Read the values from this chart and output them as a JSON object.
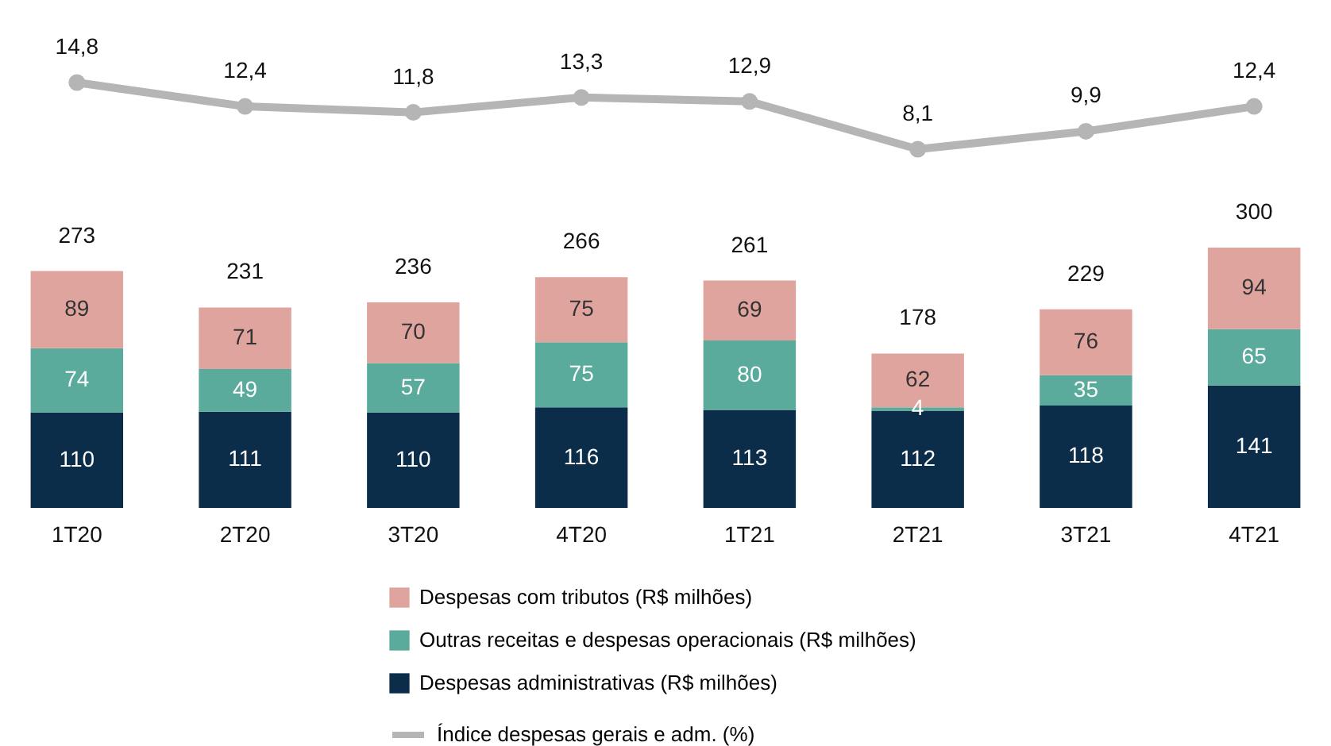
{
  "chart_data": [
    {
      "type": "line",
      "categories": [
        null,
        null,
        null,
        null,
        null,
        null,
        null,
        null
      ],
      "series": [
        {
          "name": "Índice despesas gerais e adm. (%)",
          "color": "#b5b5b5",
          "values": [
            14.8,
            12.4,
            11.8,
            13.3,
            12.9,
            8.1,
            9.9,
            12.4
          ],
          "value_labels": [
            "14,8",
            "12,4",
            "11,8",
            "13,3",
            "12,9",
            "8,1",
            "9,9",
            "12,4"
          ]
        }
      ],
      "tick_labels": false,
      "marker": "circle",
      "line_style": "solid",
      "legend": "bottom"
    },
    {
      "type": "bar",
      "stacked": true,
      "categories": [
        "1T20",
        "2T20",
        "3T20",
        "4T20",
        "1T21",
        "2T21",
        "3T21",
        "4T21"
      ],
      "series": [
        {
          "name": "Despesas administrativas  (R$ milhões)",
          "color": "#0b2d4a",
          "values": [
            110,
            111,
            110,
            116,
            113,
            112,
            118,
            141
          ]
        },
        {
          "name": "Outras receitas e despesas operacionais  (R$ milhões)",
          "color": "#5aab9c",
          "values": [
            74,
            49,
            57,
            75,
            80,
            4,
            35,
            65
          ]
        },
        {
          "name": "Despesas com tributos  (R$ milhões)",
          "color": "#e0a49e",
          "values": [
            89,
            71,
            70,
            75,
            69,
            62,
            76,
            94
          ]
        }
      ],
      "totals": [
        "273",
        "231",
        "236",
        "266",
        "261",
        "178",
        "229",
        "300"
      ],
      "data_labels": true,
      "tick_labels": "x",
      "legend": "bottom"
    }
  ]
}
